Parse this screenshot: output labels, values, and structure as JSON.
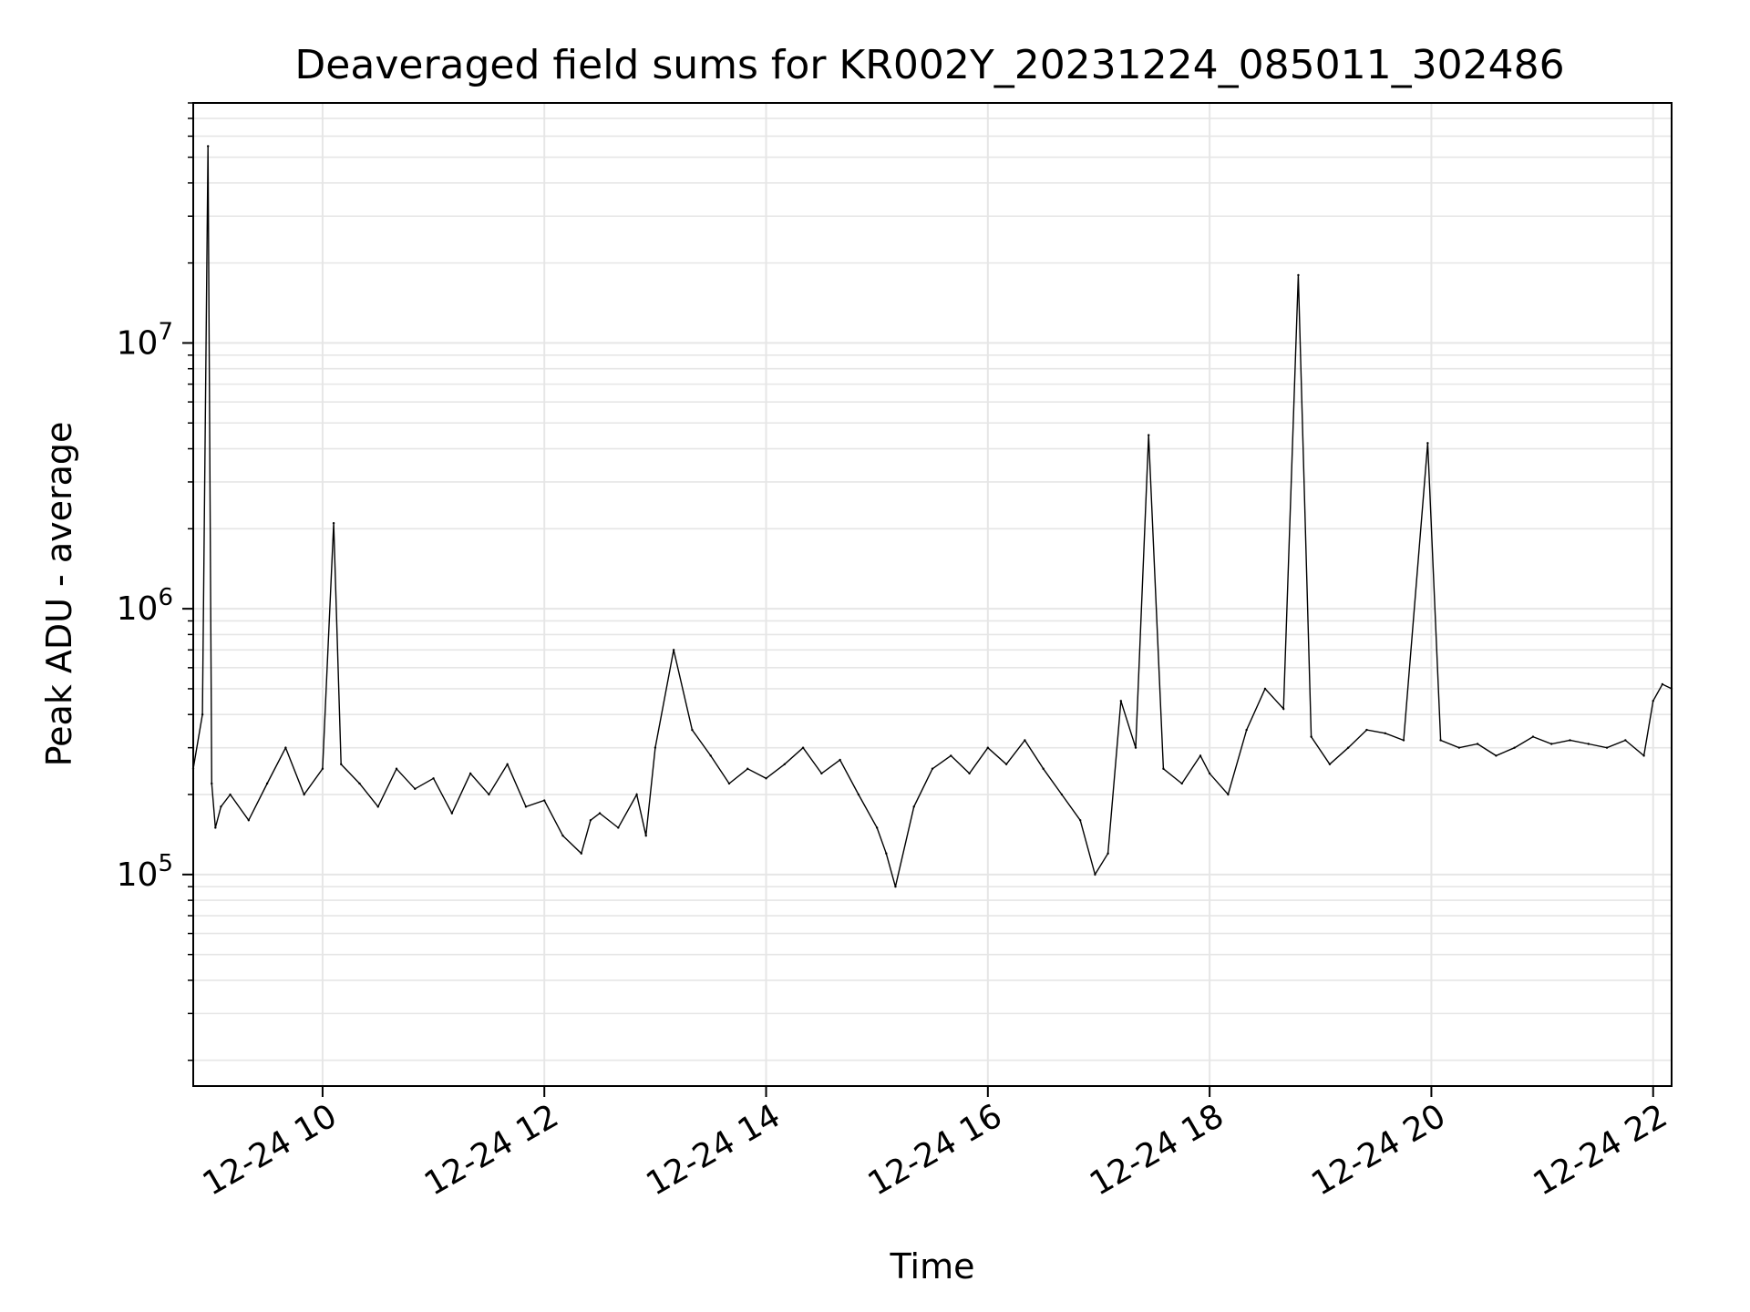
{
  "chart_data": {
    "type": "line",
    "title": "Deaveraged field sums for KR002Y_20231224_085011_302486",
    "xlabel": "Time",
    "ylabel": "Peak ADU - average",
    "xscale": "time",
    "yscale": "log",
    "xlim": [
      "2023-12-24 08:50",
      "2023-12-24 22:10"
    ],
    "ylim": [
      16000,
      80000000
    ],
    "grid": true,
    "legend": "none",
    "line_color": "#000000",
    "grid_color": "#e6e6e6",
    "x_ticks": [
      {
        "value": "2023-12-24 10:00",
        "label": "12-24 10"
      },
      {
        "value": "2023-12-24 12:00",
        "label": "12-24 12"
      },
      {
        "value": "2023-12-24 14:00",
        "label": "12-24 14"
      },
      {
        "value": "2023-12-24 16:00",
        "label": "12-24 16"
      },
      {
        "value": "2023-12-24 18:00",
        "label": "12-24 18"
      },
      {
        "value": "2023-12-24 20:00",
        "label": "12-24 20"
      },
      {
        "value": "2023-12-24 22:00",
        "label": "12-24 22"
      }
    ],
    "y_ticks": [
      {
        "value": 100000,
        "base": "10",
        "exp": "5"
      },
      {
        "value": 1000000,
        "base": "10",
        "exp": "6"
      },
      {
        "value": 10000000,
        "base": "10",
        "exp": "7"
      }
    ],
    "series": [
      {
        "x": [
          "2023-12-24 08:50",
          "2023-12-24 08:55",
          "2023-12-24 08:58",
          "2023-12-24 09:00",
          "2023-12-24 09:02",
          "2023-12-24 09:05",
          "2023-12-24 09:10",
          "2023-12-24 09:20",
          "2023-12-24 09:30",
          "2023-12-24 09:40",
          "2023-12-24 09:50",
          "2023-12-24 10:00",
          "2023-12-24 10:06",
          "2023-12-24 10:10",
          "2023-12-24 10:20",
          "2023-12-24 10:30",
          "2023-12-24 10:40",
          "2023-12-24 10:50",
          "2023-12-24 11:00",
          "2023-12-24 11:10",
          "2023-12-24 11:20",
          "2023-12-24 11:30",
          "2023-12-24 11:40",
          "2023-12-24 11:50",
          "2023-12-24 12:00",
          "2023-12-24 12:10",
          "2023-12-24 12:20",
          "2023-12-24 12:25",
          "2023-12-24 12:30",
          "2023-12-24 12:40",
          "2023-12-24 12:50",
          "2023-12-24 12:55",
          "2023-12-24 13:00",
          "2023-12-24 13:10",
          "2023-12-24 13:20",
          "2023-12-24 13:30",
          "2023-12-24 13:40",
          "2023-12-24 13:50",
          "2023-12-24 14:00",
          "2023-12-24 14:10",
          "2023-12-24 14:20",
          "2023-12-24 14:30",
          "2023-12-24 14:40",
          "2023-12-24 14:50",
          "2023-12-24 15:00",
          "2023-12-24 15:05",
          "2023-12-24 15:10",
          "2023-12-24 15:20",
          "2023-12-24 15:30",
          "2023-12-24 15:40",
          "2023-12-24 15:50",
          "2023-12-24 16:00",
          "2023-12-24 16:10",
          "2023-12-24 16:20",
          "2023-12-24 16:30",
          "2023-12-24 16:40",
          "2023-12-24 16:50",
          "2023-12-24 16:58",
          "2023-12-24 17:05",
          "2023-12-24 17:12",
          "2023-12-24 17:20",
          "2023-12-24 17:27",
          "2023-12-24 17:35",
          "2023-12-24 17:45",
          "2023-12-24 17:55",
          "2023-12-24 18:00",
          "2023-12-24 18:10",
          "2023-12-24 18:20",
          "2023-12-24 18:30",
          "2023-12-24 18:40",
          "2023-12-24 18:48",
          "2023-12-24 18:55",
          "2023-12-24 19:05",
          "2023-12-24 19:15",
          "2023-12-24 19:25",
          "2023-12-24 19:35",
          "2023-12-24 19:45",
          "2023-12-24 19:58",
          "2023-12-24 20:05",
          "2023-12-24 20:15",
          "2023-12-24 20:25",
          "2023-12-24 20:35",
          "2023-12-24 20:45",
          "2023-12-24 20:55",
          "2023-12-24 21:05",
          "2023-12-24 21:15",
          "2023-12-24 21:25",
          "2023-12-24 21:35",
          "2023-12-24 21:45",
          "2023-12-24 21:55",
          "2023-12-24 22:00",
          "2023-12-24 22:05",
          "2023-12-24 22:10"
        ],
        "y": [
          250000,
          400000,
          55000000,
          220000,
          150000,
          180000,
          200000,
          160000,
          220000,
          300000,
          200000,
          250000,
          2100000,
          260000,
          220000,
          180000,
          250000,
          210000,
          230000,
          170000,
          240000,
          200000,
          260000,
          180000,
          190000,
          140000,
          120000,
          160000,
          170000,
          150000,
          200000,
          140000,
          300000,
          700000,
          350000,
          280000,
          220000,
          250000,
          230000,
          260000,
          300000,
          240000,
          270000,
          200000,
          150000,
          120000,
          90000,
          180000,
          250000,
          280000,
          240000,
          300000,
          260000,
          320000,
          250000,
          200000,
          160000,
          100000,
          120000,
          450000,
          300000,
          4500000,
          250000,
          220000,
          280000,
          240000,
          200000,
          350000,
          500000,
          420000,
          18000000,
          330000,
          260000,
          300000,
          350000,
          340000,
          320000,
          4200000,
          320000,
          300000,
          310000,
          280000,
          300000,
          330000,
          310000,
          320000,
          310000,
          300000,
          320000,
          280000,
          450000,
          520000,
          500000
        ]
      }
    ]
  }
}
